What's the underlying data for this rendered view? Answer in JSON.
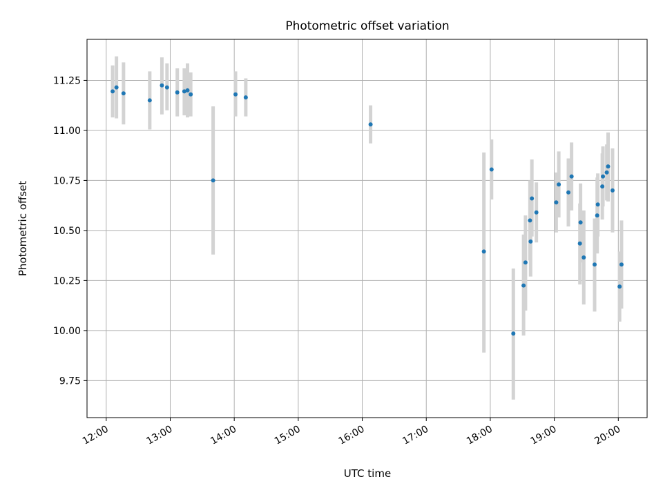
{
  "chart_data": {
    "type": "scatter",
    "title": "Photometric offset variation",
    "xlabel": "UTC time",
    "ylabel": "Photometric offset",
    "x_unit": "UTC hour of day",
    "xlim": [
      11.7,
      20.45
    ],
    "ylim": [
      9.565,
      11.455
    ],
    "grid": true,
    "xticks": [
      12,
      13,
      14,
      15,
      16,
      17,
      18,
      19,
      20
    ],
    "xtick_labels": [
      "12:00",
      "13:00",
      "14:00",
      "15:00",
      "16:00",
      "17:00",
      "18:00",
      "19:00",
      "20:00"
    ],
    "yticks": [
      9.75,
      10.0,
      10.25,
      10.5,
      10.75,
      11.0,
      11.25
    ],
    "ytick_labels": [
      "9.75",
      "10.00",
      "10.25",
      "10.50",
      "10.75",
      "11.00",
      "11.25"
    ],
    "colors": {
      "point": "#1f77b4",
      "errorbar": "#d3d3d3",
      "grid": "#b0b0b0"
    },
    "points": [
      {
        "x": 12.1,
        "y": 11.195,
        "lo": 11.065,
        "hi": 11.325
      },
      {
        "x": 12.16,
        "y": 11.215,
        "lo": 11.06,
        "hi": 11.37
      },
      {
        "x": 12.27,
        "y": 11.185,
        "lo": 11.03,
        "hi": 11.34
      },
      {
        "x": 12.68,
        "y": 11.15,
        "lo": 11.005,
        "hi": 11.295
      },
      {
        "x": 12.87,
        "y": 11.225,
        "lo": 11.08,
        "hi": 11.365
      },
      {
        "x": 12.95,
        "y": 11.215,
        "lo": 11.1,
        "hi": 11.335
      },
      {
        "x": 13.11,
        "y": 11.19,
        "lo": 11.07,
        "hi": 11.31
      },
      {
        "x": 13.22,
        "y": 11.195,
        "lo": 11.075,
        "hi": 11.31
      },
      {
        "x": 13.27,
        "y": 11.2,
        "lo": 11.065,
        "hi": 11.335
      },
      {
        "x": 13.32,
        "y": 11.18,
        "lo": 11.07,
        "hi": 11.29
      },
      {
        "x": 13.67,
        "y": 10.75,
        "lo": 10.38,
        "hi": 11.12
      },
      {
        "x": 14.02,
        "y": 11.18,
        "lo": 11.07,
        "hi": 11.295
      },
      {
        "x": 14.18,
        "y": 11.165,
        "lo": 11.07,
        "hi": 11.26
      },
      {
        "x": 16.13,
        "y": 11.03,
        "lo": 10.935,
        "hi": 11.125
      },
      {
        "x": 17.9,
        "y": 10.395,
        "lo": 9.89,
        "hi": 10.89
      },
      {
        "x": 18.02,
        "y": 10.805,
        "lo": 10.655,
        "hi": 10.955
      },
      {
        "x": 18.36,
        "y": 9.985,
        "lo": 9.655,
        "hi": 10.31
      },
      {
        "x": 18.52,
        "y": 10.225,
        "lo": 9.975,
        "hi": 10.48
      },
      {
        "x": 18.55,
        "y": 10.34,
        "lo": 10.1,
        "hi": 10.575
      },
      {
        "x": 18.62,
        "y": 10.55,
        "lo": 10.35,
        "hi": 10.75
      },
      {
        "x": 18.63,
        "y": 10.445,
        "lo": 10.27,
        "hi": 10.625
      },
      {
        "x": 18.65,
        "y": 10.66,
        "lo": 10.47,
        "hi": 10.855
      },
      {
        "x": 18.72,
        "y": 10.59,
        "lo": 10.44,
        "hi": 10.74
      },
      {
        "x": 19.03,
        "y": 10.64,
        "lo": 10.49,
        "hi": 10.79
      },
      {
        "x": 19.07,
        "y": 10.73,
        "lo": 10.565,
        "hi": 10.895
      },
      {
        "x": 19.22,
        "y": 10.69,
        "lo": 10.52,
        "hi": 10.86
      },
      {
        "x": 19.27,
        "y": 10.77,
        "lo": 10.6,
        "hi": 10.94
      },
      {
        "x": 19.4,
        "y": 10.435,
        "lo": 10.23,
        "hi": 10.635
      },
      {
        "x": 19.41,
        "y": 10.54,
        "lo": 10.34,
        "hi": 10.735
      },
      {
        "x": 19.46,
        "y": 10.365,
        "lo": 10.13,
        "hi": 10.6
      },
      {
        "x": 19.63,
        "y": 10.33,
        "lo": 10.095,
        "hi": 10.56
      },
      {
        "x": 19.67,
        "y": 10.575,
        "lo": 10.385,
        "hi": 10.765
      },
      {
        "x": 19.68,
        "y": 10.63,
        "lo": 10.47,
        "hi": 10.785
      },
      {
        "x": 19.75,
        "y": 10.72,
        "lo": 10.555,
        "hi": 10.885
      },
      {
        "x": 19.76,
        "y": 10.77,
        "lo": 10.62,
        "hi": 10.92
      },
      {
        "x": 19.82,
        "y": 10.79,
        "lo": 10.65,
        "hi": 10.93
      },
      {
        "x": 19.84,
        "y": 10.82,
        "lo": 10.645,
        "hi": 10.99
      },
      {
        "x": 19.91,
        "y": 10.7,
        "lo": 10.49,
        "hi": 10.91
      },
      {
        "x": 20.02,
        "y": 10.22,
        "lo": 10.045,
        "hi": 10.395
      },
      {
        "x": 20.05,
        "y": 10.33,
        "lo": 10.11,
        "hi": 10.55
      }
    ]
  }
}
